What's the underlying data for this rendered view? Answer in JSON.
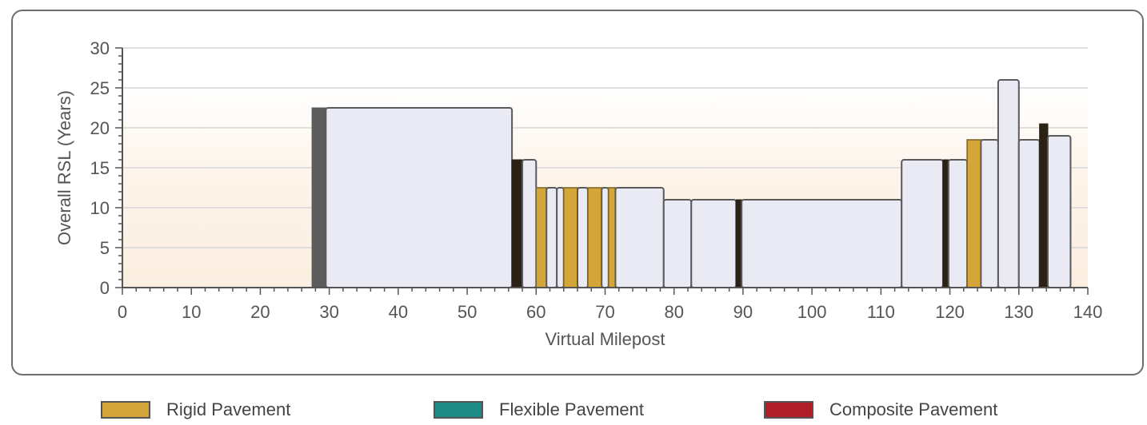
{
  "chart_data": {
    "type": "bar",
    "ylabel": "Overall RSL (Years)",
    "xlabel": "Virtual Milepost",
    "xlim": [
      0,
      140
    ],
    "ylim": [
      0,
      30
    ],
    "x_ticks": [
      0,
      10,
      20,
      30,
      40,
      50,
      60,
      70,
      80,
      90,
      100,
      110,
      120,
      130,
      140
    ],
    "y_ticks": [
      0,
      5,
      10,
      15,
      20,
      25,
      30
    ],
    "grid": true,
    "bars": [
      {
        "x0": 27.5,
        "x1": 29.5,
        "value": 22.5,
        "kind": "divider"
      },
      {
        "x0": 29.5,
        "x1": 56.5,
        "value": 22.5,
        "kind": "segment"
      },
      {
        "x0": 56.5,
        "x1": 58,
        "value": 16,
        "kind": "divider-dark"
      },
      {
        "x0": 58,
        "x1": 60,
        "value": 16,
        "kind": "segment"
      },
      {
        "x0": 60,
        "x1": 61.5,
        "value": 12.5,
        "kind": "rigid"
      },
      {
        "x0": 61.5,
        "x1": 63,
        "value": 12.5,
        "kind": "segment"
      },
      {
        "x0": 63,
        "x1": 64,
        "value": 12.5,
        "kind": "segment"
      },
      {
        "x0": 64,
        "x1": 66,
        "value": 12.5,
        "kind": "rigid"
      },
      {
        "x0": 66,
        "x1": 67.5,
        "value": 12.5,
        "kind": "segment"
      },
      {
        "x0": 67.5,
        "x1": 69.5,
        "value": 12.5,
        "kind": "rigid"
      },
      {
        "x0": 69.5,
        "x1": 70.5,
        "value": 12.5,
        "kind": "segment"
      },
      {
        "x0": 70.5,
        "x1": 71.5,
        "value": 12.5,
        "kind": "rigid"
      },
      {
        "x0": 71.5,
        "x1": 78.5,
        "value": 12.5,
        "kind": "segment"
      },
      {
        "x0": 78.5,
        "x1": 82.5,
        "value": 11,
        "kind": "segment"
      },
      {
        "x0": 82.5,
        "x1": 89,
        "value": 11,
        "kind": "segment"
      },
      {
        "x0": 89,
        "x1": 89.8,
        "value": 11,
        "kind": "divider-dark"
      },
      {
        "x0": 89.8,
        "x1": 113,
        "value": 11,
        "kind": "segment"
      },
      {
        "x0": 113,
        "x1": 119,
        "value": 16,
        "kind": "segment"
      },
      {
        "x0": 119,
        "x1": 119.8,
        "value": 16,
        "kind": "divider-dark"
      },
      {
        "x0": 119.8,
        "x1": 122.5,
        "value": 16,
        "kind": "segment"
      },
      {
        "x0": 122.5,
        "x1": 124.5,
        "value": 18.5,
        "kind": "rigid"
      },
      {
        "x0": 124.5,
        "x1": 127,
        "value": 18.5,
        "kind": "segment"
      },
      {
        "x0": 127,
        "x1": 130,
        "value": 26,
        "kind": "segment"
      },
      {
        "x0": 130,
        "x1": 133,
        "value": 18.5,
        "kind": "segment"
      },
      {
        "x0": 133,
        "x1": 134.2,
        "value": 20.5,
        "kind": "divider-dark"
      },
      {
        "x0": 134.2,
        "x1": 137.5,
        "value": 19,
        "kind": "segment"
      }
    ],
    "legend": [
      {
        "label": "Rigid Pavement",
        "color": "#d4a63a"
      },
      {
        "label": "Flexible Pavement",
        "color": "#1e8a86"
      },
      {
        "label": "Composite Pavement",
        "color": "#b01e2a"
      }
    ],
    "legend_position": "bottom"
  },
  "colors": {
    "segment_fill": "#e9eaf4",
    "segment_stroke": "#5a5a5a",
    "divider": "#5c5c5c",
    "divider_dark": "#2b2114",
    "rigid": "#d4a63a",
    "band_bottom": "#fbeee1",
    "band_top": "#ffffff",
    "grid": "#d6d6d6"
  }
}
